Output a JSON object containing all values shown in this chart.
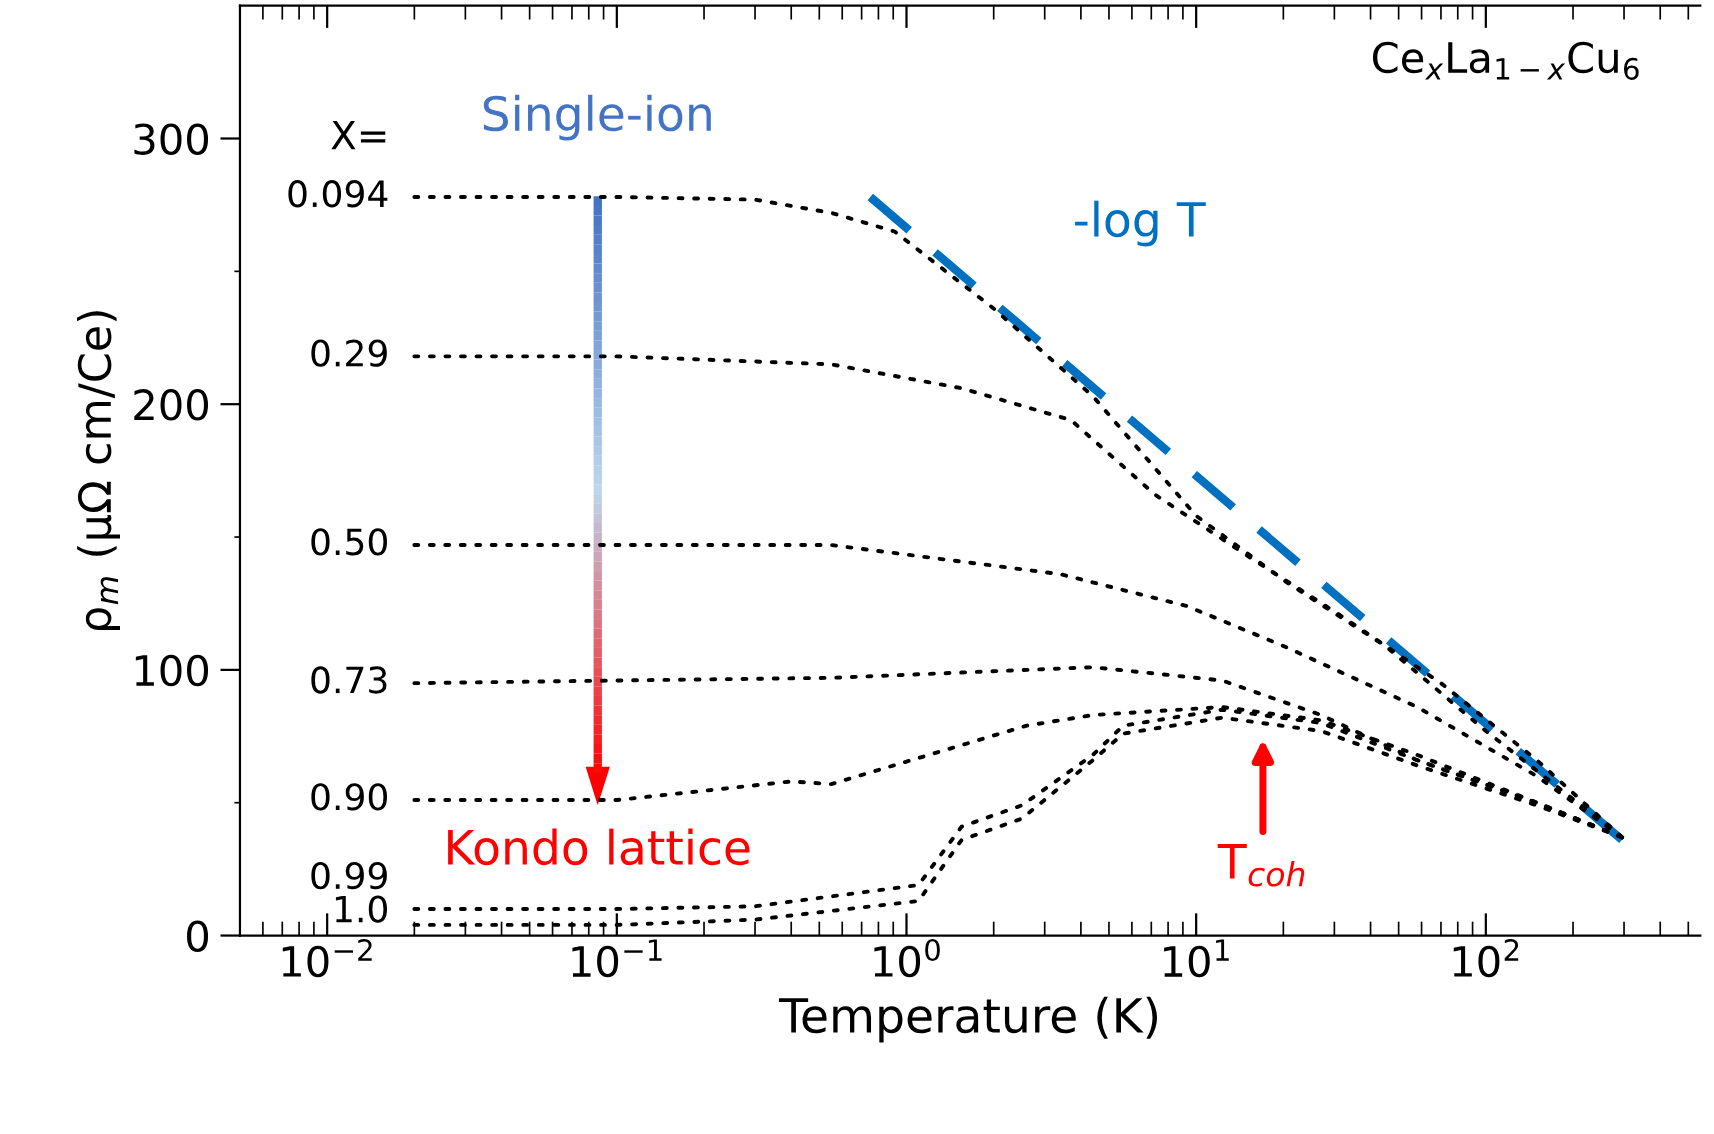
{
  "chart_data": {
    "type": "line",
    "xlabel": "Temperature (K)",
    "ylabel": "ρ$_{m}$ (μΩ cm/Ce)",
    "log": "x",
    "xlim": [
      0.005,
      550
    ],
    "ylim": [
      0,
      350
    ],
    "xticks": [
      {
        "value": 0.01,
        "label": "10$^{−2}$"
      },
      {
        "value": 0.1,
        "label": "10$^{−1}$"
      },
      {
        "value": 1,
        "label": "10$^{0}$"
      },
      {
        "value": 10,
        "label": "10$^{1}$"
      },
      {
        "value": 100,
        "label": "10$^{2}$"
      }
    ],
    "yticks": [
      0,
      100,
      200,
      300
    ],
    "grid": false,
    "legend": false,
    "marker": "none",
    "series": [
      {
        "name": "0.094",
        "color": "#000000",
        "line_style": "dotted",
        "x": [
          0.02,
          0.1,
          0.3,
          0.55,
          0.91,
          2.0,
          4.4,
          10,
          20.5,
          45,
          100,
          295
        ],
        "values": [
          278,
          278,
          277,
          272,
          265,
          236,
          203,
          158,
          133,
          109,
          77,
          37
        ]
      },
      {
        "name": "0.29",
        "color": "#000000",
        "line_style": "dotted",
        "x": [
          0.02,
          0.1,
          0.55,
          1.55,
          3.7,
          7.2,
          16,
          31,
          70,
          150,
          295
        ],
        "values": [
          218,
          218,
          215,
          206,
          194,
          166,
          141,
          121,
          95,
          66,
          37
        ]
      },
      {
        "name": "0.50",
        "color": "#000000",
        "line_style": "dotted",
        "x": [
          0.02,
          0.1,
          0.55,
          3.4,
          9.3,
          20,
          58,
          150,
          295
        ],
        "values": [
          147,
          147,
          147,
          136,
          124,
          109,
          86,
          60,
          37
        ]
      },
      {
        "name": "0.73",
        "color": "#000000",
        "line_style": "dotted",
        "x": [
          0.02,
          0.1,
          0.55,
          4.4,
          12.3,
          27,
          58,
          150,
          295
        ],
        "values": [
          95,
          96,
          97,
          101,
          96,
          83,
          66,
          50,
          37
        ]
      },
      {
        "name": "0.90",
        "color": "#000000",
        "line_style": "dotted",
        "x": [
          0.02,
          0.1,
          0.4,
          0.55,
          2.6,
          4.4,
          12.3,
          27,
          58,
          150,
          295
        ],
        "values": [
          51,
          51,
          58,
          57,
          79,
          83,
          86,
          81,
          68,
          50,
          37
        ]
      },
      {
        "name": "0.99",
        "color": "#000000",
        "line_style": "dotted",
        "x": [
          0.02,
          0.1,
          0.3,
          1.1,
          1.55,
          2.5,
          4.4,
          5.6,
          12.3,
          27,
          58,
          150,
          295
        ],
        "values": [
          10,
          10,
          11,
          19,
          41,
          49,
          68,
          79,
          85,
          80,
          66,
          50,
          37
        ]
      },
      {
        "name": "1.0",
        "color": "#000000",
        "line_style": "dotted",
        "x": [
          0.02,
          0.1,
          0.3,
          1.1,
          1.55,
          2.5,
          4.4,
          5.6,
          12.3,
          27,
          58,
          150,
          295
        ],
        "values": [
          4,
          4,
          6,
          13,
          36,
          44,
          66,
          76,
          82,
          77,
          64,
          49,
          37
        ]
      },
      {
        "name": "-log T",
        "color": "#0070c0",
        "line_style": "dashed",
        "x": [
          0.75,
          295
        ],
        "values": [
          278,
          36
        ]
      }
    ],
    "annotations": [
      "X=",
      "Ce$_{x}$La$_{1−x}$Cu$_{6}$",
      "Single-ion",
      "Kondo lattice",
      {
        "text": "T$_{coh}$",
        "x": 17,
        "y": 80
      }
    ]
  }
}
